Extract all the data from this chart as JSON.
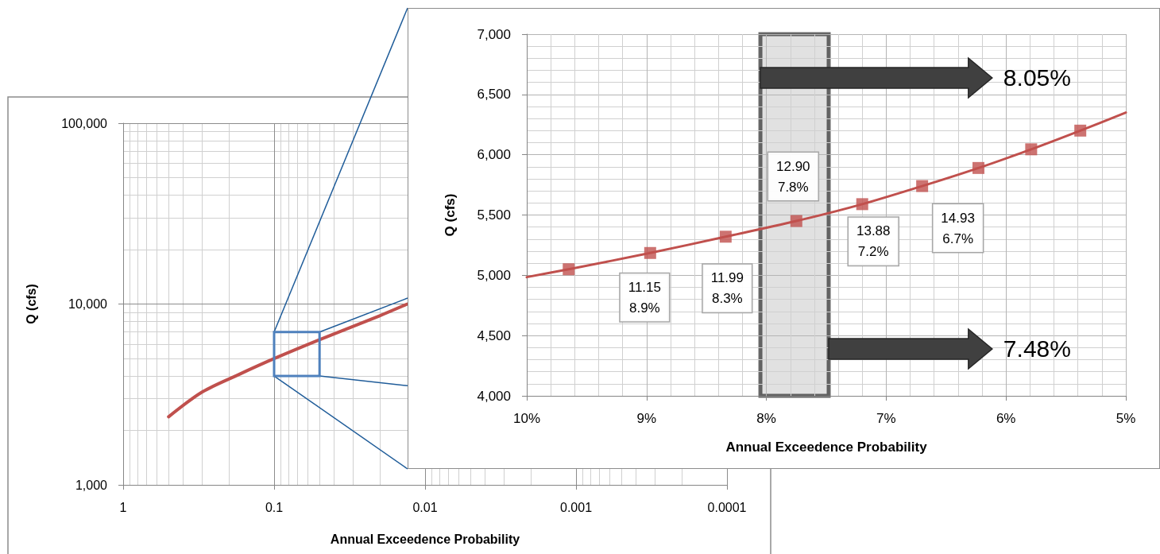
{
  "chart_data": [
    {
      "type": "line",
      "xlabel": "Annual Exceedence Probability",
      "ylabel": "Q (cfs)",
      "log": "xy",
      "grid": true,
      "xlim": [
        1,
        0.0001
      ],
      "xticks": [
        1,
        0.1,
        0.01,
        0.001,
        0.0001
      ],
      "ylim": [
        1000,
        100000
      ],
      "yticks": [
        {
          "value": 1000,
          "label": "1,000"
        },
        {
          "value": 10000,
          "label": "10,000"
        },
        {
          "value": 100000,
          "label": "100,000"
        }
      ],
      "series": [
        {
          "color": "#c0504d",
          "x": [
            0.5,
            0.3,
            0.172,
            0.1,
            0.05,
            0.02,
            0.0131
          ],
          "values": [
            2380,
            3260,
            4070,
            4990,
            6350,
            8610,
            10000
          ]
        }
      ]
    },
    {
      "type": "line",
      "xlabel": "Annual Exceedence Probability",
      "ylabel": "Q (cfs)",
      "grid": true,
      "xlim": [
        10,
        5
      ],
      "xticks": [
        {
          "value": 5,
          "label": "5%"
        },
        {
          "value": 6,
          "label": "6%"
        },
        {
          "value": 7,
          "label": "7%"
        },
        {
          "value": 8,
          "label": "8%"
        },
        {
          "value": 9,
          "label": "9%"
        },
        {
          "value": 10,
          "label": "10%"
        }
      ],
      "ylim": [
        4000,
        7000
      ],
      "yticks": [
        {
          "value": 4000,
          "label": "4,000"
        },
        {
          "value": 4500,
          "label": "4,500"
        },
        {
          "value": 5000,
          "label": "5,000"
        },
        {
          "value": 5500,
          "label": "5,500"
        },
        {
          "value": 6000,
          "label": "6,000"
        },
        {
          "value": 6500,
          "label": "6,500"
        },
        {
          "value": 7000,
          "label": "7,000"
        }
      ],
      "series": [
        {
          "color": "#c0504d",
          "marker": "none",
          "x": [
            10,
            9.65,
            8.97,
            8.34,
            7.75,
            7.2,
            6.7,
            6.23,
            5.79,
            5.38,
            5
          ],
          "values": [
            4985,
            5050,
            5185,
            5320,
            5450,
            5590,
            5740,
            5890,
            6045,
            6200,
            6350
          ]
        },
        {
          "type": "scatter",
          "color": "#c0504d",
          "marker": "square",
          "x": [
            9.65,
            8.97,
            8.34,
            7.75,
            7.2,
            6.7,
            6.23,
            5.79,
            5.38
          ],
          "values": [
            5050,
            5185,
            5320,
            5450,
            5590,
            5740,
            5890,
            6045,
            6200
          ]
        }
      ],
      "bands": [
        {
          "axis": "x",
          "from": 8.05,
          "to": 7.48,
          "color": "#d9d9d9"
        }
      ],
      "annotations": [
        "8.05%",
        "7.48%",
        {
          "text": "11.15\n8.9%",
          "x": 8.97,
          "y": 5185
        },
        {
          "text": "11.99\n8.3%",
          "x": 8.34,
          "y": 5320
        },
        {
          "text": "12.90\n7.8%",
          "x": 7.75,
          "y": 5450
        },
        {
          "text": "13.88\n7.2%",
          "x": 7.2,
          "y": 5590
        },
        {
          "text": "14.93\n6.7%",
          "x": 6.7,
          "y": 5740
        }
      ]
    }
  ]
}
